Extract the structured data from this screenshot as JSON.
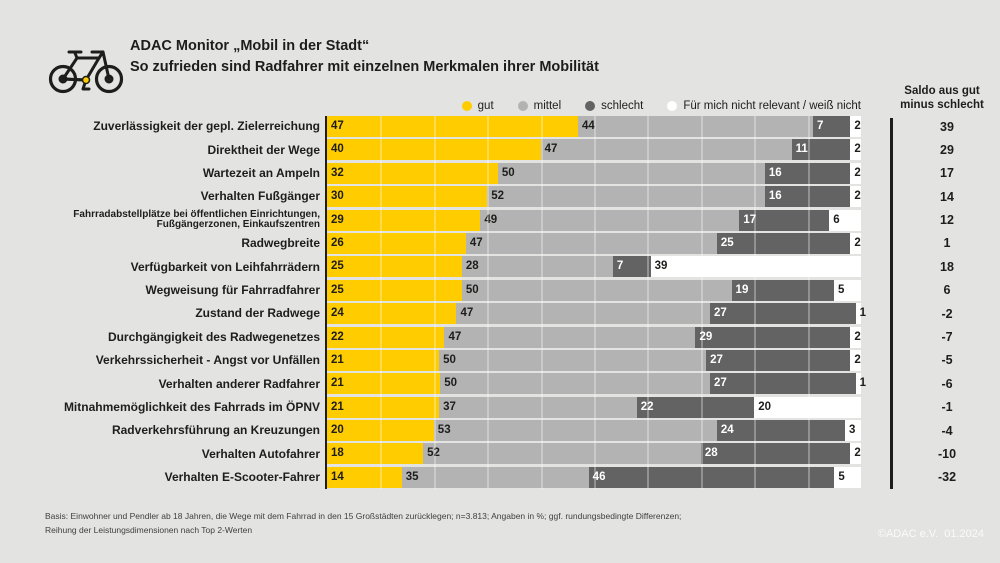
{
  "header": {
    "title": "ADAC Monitor „Mobil in der Stadt“",
    "subtitle": "So zufrieden sind Radfahrer mit einzelnen Merkmalen ihrer Mobilität"
  },
  "saldo_column": {
    "header_line1": "Saldo aus gut",
    "header_line2": "minus schlecht"
  },
  "chart_data": {
    "type": "bar",
    "orientation": "horizontal",
    "stacked": true,
    "unit": "%",
    "xlim": [
      0,
      100
    ],
    "grid": "subtle vertical lines every 10%",
    "legend_position": "top",
    "series_names": [
      "gut",
      "mittel",
      "schlecht",
      "Für mich nicht relevant / weiß nicht"
    ],
    "series_keys": [
      "gut",
      "mittel",
      "schlecht",
      "neutral"
    ],
    "series_colors": [
      "#ffcc00",
      "#b3b3b3",
      "#636363",
      "#ffffff"
    ],
    "series_text_colors": [
      "#1d1d1b",
      "#1d1d1b",
      "#ffffff",
      "#1d1d1b"
    ],
    "saldo_label": "Saldo aus gut minus schlecht",
    "rows": [
      {
        "label": "Zuverlässigkeit der gepl. Zielerreichung",
        "values": [
          47,
          44,
          7,
          2
        ],
        "saldo": 39
      },
      {
        "label": "Direktheit der Wege",
        "values": [
          40,
          47,
          11,
          2
        ],
        "saldo": 29
      },
      {
        "label": "Wartezeit an Ampeln",
        "values": [
          32,
          50,
          16,
          2
        ],
        "saldo": 17
      },
      {
        "label": "Verhalten Fußgänger",
        "values": [
          30,
          52,
          16,
          2
        ],
        "saldo": 14
      },
      {
        "label": "Fahrradabstellplätze bei öffentlichen Einrichtungen, Fußgängerzonen, Einkaufszentren",
        "values": [
          29,
          49,
          17,
          6
        ],
        "saldo": 12
      },
      {
        "label": "Radwegbreite",
        "values": [
          26,
          47,
          25,
          2
        ],
        "saldo": 1
      },
      {
        "label": "Verfügbarkeit von Leihfahrrädern",
        "values": [
          25,
          28,
          7,
          39
        ],
        "saldo": 18
      },
      {
        "label": "Wegweisung für Fahrradfahrer",
        "values": [
          25,
          50,
          19,
          5
        ],
        "saldo": 6
      },
      {
        "label": "Zustand der Radwege",
        "values": [
          24,
          47,
          27,
          1
        ],
        "saldo": -2
      },
      {
        "label": "Durchgängigkeit des Radwegenetzes",
        "values": [
          22,
          47,
          29,
          2
        ],
        "saldo": -7
      },
      {
        "label": "Verkehrssicherheit - Angst vor Unfällen",
        "values": [
          21,
          50,
          27,
          2
        ],
        "saldo": -5
      },
      {
        "label": "Verhalten anderer Radfahrer",
        "values": [
          21,
          50,
          27,
          1
        ],
        "saldo": -6
      },
      {
        "label": "Mitnahmemöglichkeit des Fahrrads im ÖPNV",
        "values": [
          21,
          37,
          22,
          20
        ],
        "saldo": -1
      },
      {
        "label": "Radverkehrsführung an Kreuzungen",
        "values": [
          20,
          53,
          24,
          3
        ],
        "saldo": -4
      },
      {
        "label": "Verhalten Autofahrer",
        "values": [
          18,
          52,
          28,
          2
        ],
        "saldo": -10
      },
      {
        "label": "Verhalten E-Scooter-Fahrer",
        "values": [
          14,
          35,
          46,
          5
        ],
        "saldo": -32
      }
    ]
  },
  "footer": {
    "line1": "Basis: Einwohner und Pendler ab 18 Jahren, die Wege mit dem Fahrrad in den 15 Großstädten zurücklegen; n=3.813; Angaben in %; ggf. rundungsbedingte Differenzen;",
    "line2": "Reihung der Leistungsdimensionen nach Top 2-Werten"
  },
  "copyright": "©ADAC e.V.  01.2024",
  "colors": {
    "background": "#e3e3e1",
    "accent_yellow": "#ffcc00",
    "text": "#1d1d1b"
  }
}
